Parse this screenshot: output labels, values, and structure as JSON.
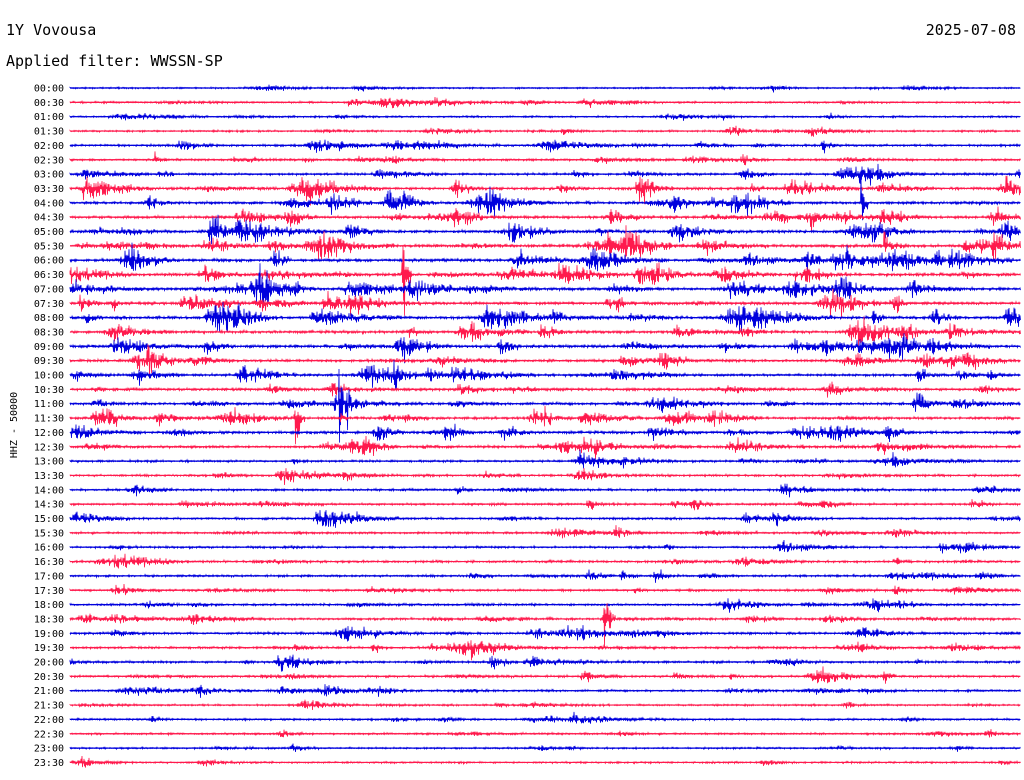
{
  "header": {
    "station": "1Y Vovousa",
    "date": "2025-07-08",
    "filter": "Applied filter: WWSSN-SP"
  },
  "chart_data": {
    "type": "line",
    "ylabel": "HHZ - 50000",
    "rows": [
      "00:00",
      "00:30",
      "01:00",
      "01:30",
      "02:00",
      "02:30",
      "03:00",
      "03:30",
      "04:00",
      "04:30",
      "05:00",
      "05:30",
      "06:00",
      "06:30",
      "07:00",
      "07:30",
      "08:00",
      "08:30",
      "09:00",
      "09:30",
      "10:00",
      "10:30",
      "11:00",
      "11:30",
      "12:00",
      "12:30",
      "13:00",
      "13:30",
      "14:00",
      "14:30",
      "15:00",
      "15:30",
      "16:00",
      "16:30",
      "17:00",
      "17:30",
      "18:00",
      "18:30",
      "19:00",
      "19:30",
      "20:00",
      "20:30",
      "21:00",
      "21:30",
      "22:00",
      "22:30",
      "23:00",
      "23:30"
    ],
    "series_colors": [
      "#0000dd",
      "#ff1a4d"
    ],
    "activity": [
      0.2,
      0.3,
      0.25,
      0.35,
      0.5,
      0.4,
      0.6,
      0.8,
      0.85,
      0.8,
      0.9,
      0.95,
      1.0,
      1.0,
      0.95,
      0.9,
      0.9,
      0.85,
      0.9,
      0.8,
      0.7,
      0.75,
      0.8,
      0.75,
      0.8,
      0.6,
      0.5,
      0.45,
      0.55,
      0.5,
      0.5,
      0.45,
      0.45,
      0.5,
      0.5,
      0.45,
      0.45,
      0.5,
      0.6,
      0.55,
      0.55,
      0.5,
      0.4,
      0.35,
      0.35,
      0.35,
      0.3,
      0.3
    ]
  }
}
